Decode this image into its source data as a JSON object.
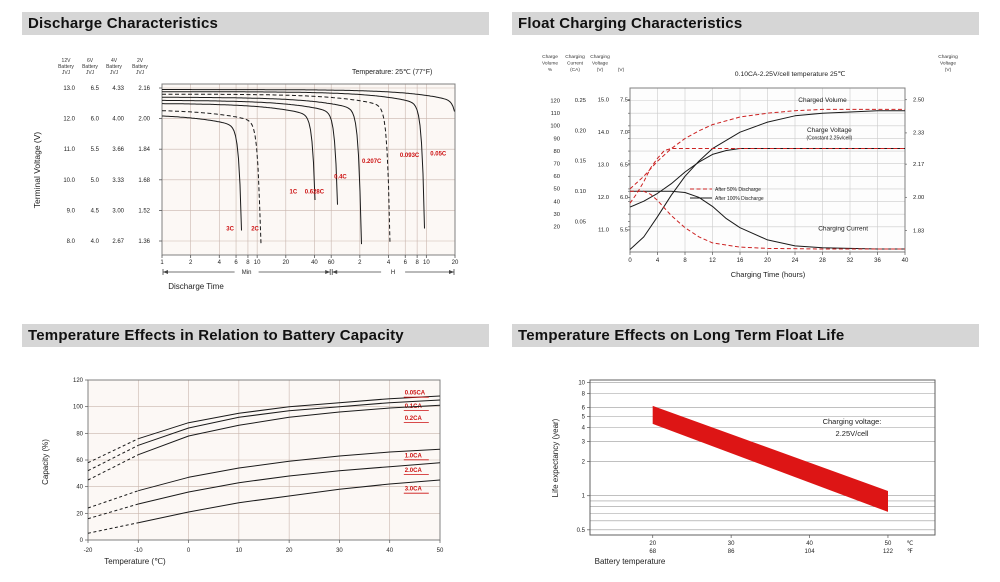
{
  "panels": [
    {
      "title": "Discharge Characteristics"
    },
    {
      "title": "Float Charging Characteristics"
    },
    {
      "title": "Temperature Effects in Relation to Battery Capacity"
    },
    {
      "title": "Temperature Effects on Long Term Float Life"
    }
  ],
  "colors": {
    "curve": "#1a1a1a",
    "red": "#cc1111",
    "band_red": "#dd1515",
    "grid_pink": "#c9b6ae",
    "grid_gray": "#cccccc",
    "header_bg": "#d6d6d6"
  },
  "chart_data": [
    {
      "type": "line",
      "title": "Discharge Characteristics",
      "note": "Temperature: 25℃ (77°F)",
      "ylabel": "Terminal Voltage (V)",
      "xlabel": "Discharge Time",
      "x_minute_ticks": [
        1,
        2,
        4,
        6,
        8,
        10,
        20,
        40,
        60
      ],
      "x_hour_ticks": [
        2,
        4,
        6,
        8,
        10,
        20
      ],
      "x_span_labels": [
        "Min",
        "H"
      ],
      "x_log_total_min": 1200,
      "y_top_value": 13.0,
      "y_bottom_value": 8.0,
      "axis_columns": [
        {
          "header": [
            "12V",
            "Battery",
            "JVJ"
          ],
          "ticks": [
            "13.0",
            "12.0",
            "11.0",
            "10.0",
            "9.0",
            "8.0"
          ]
        },
        {
          "header": [
            "6V",
            "Battery",
            "JVJ"
          ],
          "ticks": [
            "6.5",
            "6.0",
            "5.5",
            "5.0",
            "4.5",
            "4.0"
          ]
        },
        {
          "header": [
            "4V",
            "Battery",
            "JVJ"
          ],
          "ticks": [
            "4.33",
            "4.00",
            "3.66",
            "3.33",
            "3.00",
            "2.67"
          ]
        },
        {
          "header": [
            "2V",
            "Battery",
            "JVJ"
          ],
          "ticks": [
            "2.16",
            "2.00",
            "1.84",
            "1.68",
            "1.52",
            "1.36"
          ]
        }
      ],
      "series": [
        {
          "label": "3C",
          "end_min": 7,
          "v_plateau": 12.15,
          "dashed": false,
          "label_at": [
            5.2,
            8.35
          ]
        },
        {
          "label": "2C",
          "end_min": 11,
          "v_plateau": 12.3,
          "dashed": true,
          "label_at": [
            9.5,
            8.35
          ]
        },
        {
          "label": "1C",
          "end_min": 42,
          "v_plateau": 12.5,
          "dashed": false,
          "label_at": [
            24,
            9.55
          ]
        },
        {
          "label": "0.628C",
          "end_min": 72,
          "v_plateau": 12.6,
          "dashed": false,
          "label_at": [
            40,
            9.55
          ]
        },
        {
          "label": "0.4C",
          "end_min": 125,
          "v_plateau": 12.7,
          "dashed": false,
          "label_at": [
            75,
            10.05
          ]
        },
        {
          "label": "0.207C",
          "end_min": 250,
          "v_plateau": 12.8,
          "dashed": true,
          "label_at": [
            160,
            10.55
          ]
        },
        {
          "label": "0.093C",
          "end_min": 580,
          "v_plateau": 12.88,
          "dashed": false,
          "label_at": [
            400,
            10.75
          ]
        },
        {
          "label": "0.05C",
          "end_min": 1400,
          "v_plateau": 12.95,
          "dashed": false,
          "label_at": [
            800,
            10.8
          ]
        }
      ]
    },
    {
      "type": "line",
      "title": "Float Charging Characteristics",
      "note": "0.10CA-2.25V/cell  temperature 25℃",
      "xlabel": "Charging Time (hours)",
      "x_ticks": [
        0,
        4,
        8,
        12,
        16,
        20,
        24,
        28,
        32,
        36,
        40
      ],
      "x_range": [
        0,
        40
      ],
      "scales": {
        "volume": [
          0,
          130
        ],
        "current": [
          0,
          0.27
        ],
        "cell": [
          1.72,
          2.56
        ]
      },
      "h_grid_values": [
        20,
        30,
        40,
        50,
        60,
        70,
        80,
        90,
        100,
        110,
        120
      ],
      "left_axis_columns": [
        {
          "header": [
            "Charge",
            "Volume",
            "%"
          ],
          "scale": "volume",
          "ticks": [
            "120",
            "110",
            "100",
            "90",
            "80",
            "70",
            "60",
            "50",
            "40",
            "30",
            "20"
          ]
        },
        {
          "header": [
            "Charging",
            "Current",
            "(CA)"
          ],
          "scale": "current",
          "ticks": [
            "0.25",
            "0.20",
            "0.15",
            "0.10",
            "0.05"
          ]
        },
        {
          "header": [
            "Charging",
            "Voltage",
            "(V)"
          ],
          "scale": "cell6",
          "ticks": [
            "15.0",
            "14.0",
            "13.0",
            "12.0",
            "11.0"
          ]
        },
        {
          "header": [
            "",
            "",
            "(V)"
          ],
          "scale": "cell3",
          "ticks": [
            "7.5",
            "7.0",
            "6.5",
            "6.0",
            "5.5"
          ]
        }
      ],
      "right_axis": {
        "header": [
          "Charging",
          "Voltage",
          "(V)"
        ],
        "scale": "cell",
        "ticks": [
          "2.50",
          "2.33",
          "2.17",
          "2.00",
          "1.83"
        ]
      },
      "series": [
        {
          "name": "charged-volume-100",
          "scale": "volume",
          "dashed": false,
          "color": "#1a1a1a",
          "points": [
            [
              0,
              2
            ],
            [
              2,
              12
            ],
            [
              4,
              28
            ],
            [
              6,
              45
            ],
            [
              8,
              60
            ],
            [
              10,
              72
            ],
            [
              12,
              82
            ],
            [
              16,
              95
            ],
            [
              20,
              103
            ],
            [
              24,
              108
            ],
            [
              28,
              110
            ],
            [
              32,
              111
            ],
            [
              36,
              112
            ],
            [
              40,
              112
            ]
          ]
        },
        {
          "name": "charged-volume-50",
          "scale": "volume",
          "dashed": true,
          "color": "#cc2222",
          "points": [
            [
              0,
              50
            ],
            [
              2,
              60
            ],
            [
              4,
              72
            ],
            [
              6,
              82
            ],
            [
              8,
              90
            ],
            [
              10,
              96
            ],
            [
              12,
              101
            ],
            [
              16,
              107
            ],
            [
              20,
              110
            ],
            [
              24,
              112
            ],
            [
              28,
              113
            ],
            [
              32,
              113
            ],
            [
              36,
              113
            ],
            [
              40,
              113
            ]
          ]
        },
        {
          "name": "charge-voltage-100",
          "scale": "cell",
          "dashed": false,
          "color": "#1a1a1a",
          "points": [
            [
              0,
              1.95
            ],
            [
              2,
              1.98
            ],
            [
              4,
              2.02
            ],
            [
              6,
              2.07
            ],
            [
              8,
              2.13
            ],
            [
              10,
              2.18
            ],
            [
              12,
              2.22
            ],
            [
              14,
              2.24
            ],
            [
              16,
              2.25
            ],
            [
              24,
              2.25
            ],
            [
              40,
              2.25
            ]
          ]
        },
        {
          "name": "charge-voltage-50",
          "scale": "cell",
          "dashed": true,
          "color": "#cc2222",
          "points": [
            [
              0,
              1.97
            ],
            [
              1,
              2.02
            ],
            [
              2,
              2.08
            ],
            [
              3,
              2.15
            ],
            [
              4,
              2.2
            ],
            [
              5,
              2.24
            ],
            [
              6,
              2.25
            ],
            [
              16,
              2.25
            ],
            [
              40,
              2.25
            ]
          ]
        },
        {
          "name": "charging-current-100",
          "scale": "current",
          "dashed": false,
          "color": "#1a1a1a",
          "points": [
            [
              0,
              0.1
            ],
            [
              6,
              0.1
            ],
            [
              8,
              0.098
            ],
            [
              10,
              0.09
            ],
            [
              12,
              0.075
            ],
            [
              14,
              0.055
            ],
            [
              16,
              0.04
            ],
            [
              20,
              0.02
            ],
            [
              24,
              0.01
            ],
            [
              28,
              0.007
            ],
            [
              32,
              0.006
            ],
            [
              36,
              0.005
            ],
            [
              40,
              0.005
            ]
          ]
        },
        {
          "name": "charging-current-50",
          "scale": "current",
          "dashed": true,
          "color": "#cc2222",
          "points": [
            [
              0,
              0.1
            ],
            [
              2,
              0.1
            ],
            [
              3,
              0.095
            ],
            [
              4,
              0.085
            ],
            [
              6,
              0.06
            ],
            [
              8,
              0.04
            ],
            [
              10,
              0.025
            ],
            [
              12,
              0.015
            ],
            [
              16,
              0.008
            ],
            [
              20,
              0.006
            ],
            [
              28,
              0.005
            ],
            [
              40,
              0.005
            ]
          ]
        }
      ],
      "annotations": [
        {
          "text": "Charged Volume",
          "x": 28,
          "scale": "volume",
          "v": 119,
          "size": 6.5
        },
        {
          "text": "Charge Voltage",
          "x": 29,
          "scale": "cell",
          "v": 2.335,
          "size": 6.5
        },
        {
          "text": "(Constant 2.25v/cell)",
          "x": 29,
          "scale": "cell",
          "v": 2.295,
          "size": 5
        },
        {
          "text": "Charging Current",
          "x": 31,
          "scale": "current",
          "v": 0.035,
          "size": 6.5
        }
      ],
      "legend": [
        {
          "label": "After  50% Discharge",
          "dashed": true,
          "color": "#cc2222"
        },
        {
          "label": "After 100% Discharge",
          "dashed": false,
          "color": "#1a1a1a"
        }
      ]
    },
    {
      "type": "line",
      "title": "Temperature Effects in Relation to Battery Capacity",
      "xlabel": "Temperature (℃)",
      "ylabel": "Capacity (%)",
      "x_ticks": [
        -20,
        -10,
        0,
        10,
        20,
        30,
        40,
        50
      ],
      "x_range": [
        -20,
        50
      ],
      "y_ticks": [
        0,
        20,
        40,
        60,
        80,
        100,
        120
      ],
      "y_range": [
        0,
        120
      ],
      "dash_below_c": -10,
      "series": [
        {
          "label": "0.05CA",
          "points": [
            [
              -20,
              58
            ],
            [
              -10,
              76
            ],
            [
              0,
              88
            ],
            [
              10,
              95
            ],
            [
              20,
              100
            ],
            [
              30,
              103
            ],
            [
              40,
              106
            ],
            [
              50,
              108
            ]
          ],
          "label_at": [
            43,
            109
          ]
        },
        {
          "label": "0.1CA",
          "points": [
            [
              -20,
              52
            ],
            [
              -10,
              71
            ],
            [
              0,
              84
            ],
            [
              10,
              92
            ],
            [
              20,
              97
            ],
            [
              30,
              100
            ],
            [
              40,
              103
            ],
            [
              50,
              105
            ]
          ],
          "label_at": [
            43,
            99
          ]
        },
        {
          "label": "0.2CA",
          "points": [
            [
              -20,
              45
            ],
            [
              -10,
              64
            ],
            [
              0,
              78
            ],
            [
              10,
              86
            ],
            [
              20,
              92
            ],
            [
              30,
              96
            ],
            [
              40,
              99
            ],
            [
              50,
              101
            ]
          ],
          "label_at": [
            43,
            90
          ]
        },
        {
          "label": "1.0CA",
          "points": [
            [
              -20,
              24
            ],
            [
              -10,
              37
            ],
            [
              0,
              47
            ],
            [
              10,
              54
            ],
            [
              20,
              59
            ],
            [
              30,
              63
            ],
            [
              40,
              66
            ],
            [
              50,
              68
            ]
          ],
          "label_at": [
            43,
            62
          ]
        },
        {
          "label": "2.0CA",
          "points": [
            [
              -20,
              16
            ],
            [
              -10,
              27
            ],
            [
              0,
              36
            ],
            [
              10,
              43
            ],
            [
              20,
              48
            ],
            [
              30,
              52
            ],
            [
              40,
              55
            ],
            [
              50,
              58
            ]
          ],
          "label_at": [
            43,
            51
          ]
        },
        {
          "label": "3.0CA",
          "points": [
            [
              -20,
              5
            ],
            [
              -10,
              13
            ],
            [
              0,
              21
            ],
            [
              10,
              28
            ],
            [
              20,
              33
            ],
            [
              30,
              38
            ],
            [
              40,
              42
            ],
            [
              50,
              45
            ]
          ],
          "label_at": [
            43,
            37
          ]
        }
      ]
    },
    {
      "type": "band",
      "title": "Temperature Effects on Long Term Float Life",
      "xlabel": "Battery temperature",
      "ylabel": "Life expectancy (year)",
      "x_range": [
        12,
        56
      ],
      "x_ticks": [
        {
          "c": "20",
          "f": "68"
        },
        {
          "c": "30",
          "f": "86"
        },
        {
          "c": "40",
          "f": "104"
        },
        {
          "c": "50",
          "f": "122"
        }
      ],
      "x_units": {
        "c": "℃",
        "f": "℉"
      },
      "y_ticks": [
        10,
        8,
        6,
        5,
        4,
        3,
        2,
        1,
        0.5
      ],
      "y_gridlines": [
        10,
        8,
        6,
        5,
        4,
        3,
        2,
        1,
        0.9,
        0.8,
        0.7,
        0.6,
        0.5
      ],
      "y_range": [
        0.45,
        10.5
      ],
      "band": {
        "color": "#dd1515",
        "upper": [
          [
            20,
            6.2
          ],
          [
            50,
            1.1
          ]
        ],
        "lower": [
          [
            20,
            4.3
          ],
          [
            50,
            0.72
          ]
        ]
      },
      "annotation": [
        "Charging voltage:",
        "2.25V/cell"
      ]
    }
  ]
}
